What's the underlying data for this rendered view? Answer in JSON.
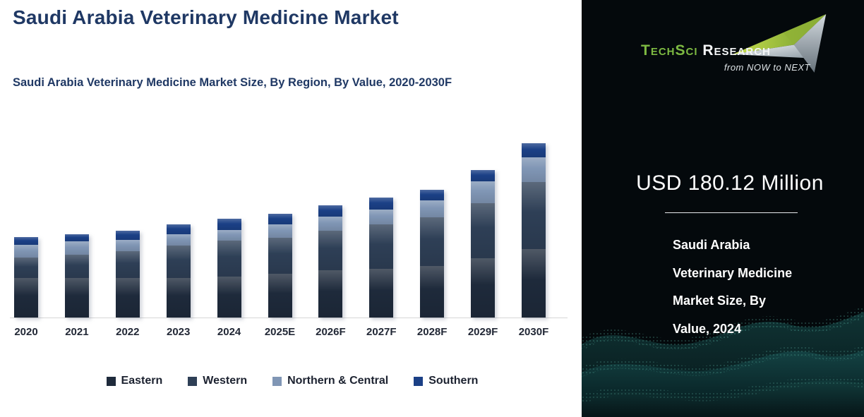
{
  "header": {
    "title": "Saudi Arabia Veterinary Medicine Market",
    "subtitle": "Saudi Arabia Veterinary Medicine Market Size, By Region, By Value, 2020-2030F"
  },
  "chart_data": {
    "type": "bar",
    "stacked": true,
    "unit": "USD Million",
    "title": "Saudi Arabia Veterinary Medicine Market Size, By Region, By Value, 2020-2030F",
    "categories": [
      "2020",
      "2021",
      "2022",
      "2023",
      "2024",
      "2025E",
      "2026F",
      "2027F",
      "2028F",
      "2029F",
      "2030F"
    ],
    "series": [
      {
        "name": "Eastern",
        "color": "#1E2A3B",
        "values": [
          72.4,
          71.5,
          72.4,
          71.5,
          75.0,
          79.3,
          85.8,
          88.8,
          94.0,
          108.8,
          125.2
        ]
      },
      {
        "name": "Western",
        "color": "#2E3F56",
        "values": [
          37.2,
          43.2,
          48.9,
          59.4,
          65.0,
          65.9,
          72.4,
          80.6,
          88.9,
          99.6,
          121.4
        ]
      },
      {
        "name": "Northern & Central",
        "color": "#8096B5",
        "values": [
          22.6,
          23.9,
          20.8,
          20.8,
          20.1,
          25.1,
          26.0,
          27.7,
          31.2,
          40.3,
          45.5
        ]
      },
      {
        "name": "Southern",
        "color": "#1B4086",
        "values": [
          14.7,
          13.0,
          16.1,
          18.2,
          20.0,
          19.5,
          19.9,
          21.7,
          18.6,
          20.4,
          26.0
        ]
      }
    ],
    "totals_note_2024": "180.12",
    "legend_position": "bottom",
    "grid": false,
    "ylim": [
      0,
      330
    ],
    "xlabel": "",
    "ylabel": ""
  },
  "sidebar": {
    "logo": {
      "brand_primary": "TechSci",
      "brand_secondary": "Research",
      "tagline": "from NOW to NEXT",
      "brand_color": "#7DB942"
    },
    "highlight_value": "USD 180.12 Million",
    "caption_lines": [
      "Saudi Arabia",
      "Veterinary Medicine",
      "Market Size, By",
      "Value, 2024"
    ]
  }
}
